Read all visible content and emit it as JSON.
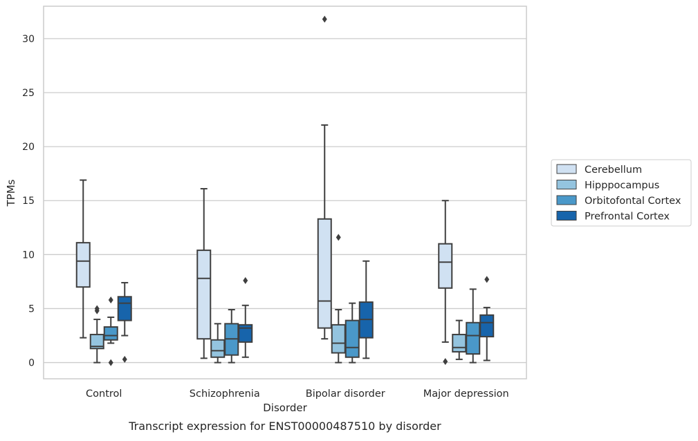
{
  "chart_data": {
    "type": "box",
    "title": "",
    "caption": "Transcript expression for ENST00000487510 by disorder",
    "xlabel": "Disorder",
    "ylabel": "TPMs",
    "ylim": [
      -1.5,
      33
    ],
    "yticks": [
      0,
      5,
      10,
      15,
      20,
      25,
      30
    ],
    "grid": "horizontal",
    "legend_position": "right",
    "categories": [
      "Control",
      "Schizophrenia",
      "Bipolar disorder",
      "Major depression"
    ],
    "series": [
      {
        "name": "Cerebellum",
        "color": "#d0e1f2",
        "boxes": [
          {
            "whisker_low": 2.3,
            "q1": 7.0,
            "median": 9.4,
            "q3": 11.1,
            "whisker_high": 16.9,
            "outliers": []
          },
          {
            "whisker_low": 0.4,
            "q1": 2.2,
            "median": 7.8,
            "q3": 10.4,
            "whisker_high": 16.1,
            "outliers": []
          },
          {
            "whisker_low": 2.2,
            "q1": 3.2,
            "median": 5.7,
            "q3": 13.3,
            "whisker_high": 22.0,
            "outliers": [
              31.8
            ]
          },
          {
            "whisker_low": 1.9,
            "q1": 6.9,
            "median": 9.3,
            "q3": 11.0,
            "whisker_high": 15.0,
            "outliers": [
              0.1
            ]
          }
        ]
      },
      {
        "name": "Hipppocampus",
        "color": "#94c4df",
        "boxes": [
          {
            "whisker_low": 0.0,
            "q1": 1.3,
            "median": 1.5,
            "q3": 2.6,
            "whisker_high": 4.0,
            "outliers": [
              5.0,
              4.8
            ]
          },
          {
            "whisker_low": 0.0,
            "q1": 0.5,
            "median": 1.1,
            "q3": 2.1,
            "whisker_high": 3.6,
            "outliers": []
          },
          {
            "whisker_low": 0.0,
            "q1": 0.9,
            "median": 1.8,
            "q3": 3.5,
            "whisker_high": 4.9,
            "outliers": [
              11.6
            ]
          },
          {
            "whisker_low": 0.3,
            "q1": 1.0,
            "median": 1.4,
            "q3": 2.6,
            "whisker_high": 3.9,
            "outliers": []
          }
        ]
      },
      {
        "name": "Orbitofontal Cortex",
        "color": "#4a98c9",
        "boxes": [
          {
            "whisker_low": 1.8,
            "q1": 2.1,
            "median": 2.5,
            "q3": 3.3,
            "whisker_high": 4.2,
            "outliers": [
              5.8,
              0.0
            ]
          },
          {
            "whisker_low": 0.0,
            "q1": 0.7,
            "median": 2.2,
            "q3": 3.6,
            "whisker_high": 4.9,
            "outliers": []
          },
          {
            "whisker_low": 0.0,
            "q1": 0.5,
            "median": 1.4,
            "q3": 3.9,
            "whisker_high": 5.5,
            "outliers": []
          },
          {
            "whisker_low": 0.0,
            "q1": 0.8,
            "median": 2.5,
            "q3": 3.7,
            "whisker_high": 6.8,
            "outliers": []
          }
        ]
      },
      {
        "name": "Prefrontal Cortex",
        "color": "#1764ab",
        "boxes": [
          {
            "whisker_low": 2.5,
            "q1": 3.9,
            "median": 5.5,
            "q3": 6.1,
            "whisker_high": 7.4,
            "outliers": [
              0.3
            ]
          },
          {
            "whisker_low": 0.5,
            "q1": 1.9,
            "median": 3.2,
            "q3": 3.5,
            "whisker_high": 5.3,
            "outliers": [
              7.6
            ]
          },
          {
            "whisker_low": 0.4,
            "q1": 2.3,
            "median": 4.0,
            "q3": 5.6,
            "whisker_high": 9.4,
            "outliers": []
          },
          {
            "whisker_low": 0.2,
            "q1": 2.4,
            "median": 3.7,
            "q3": 4.4,
            "whisker_high": 5.1,
            "outliers": [
              7.7
            ]
          }
        ]
      }
    ]
  }
}
